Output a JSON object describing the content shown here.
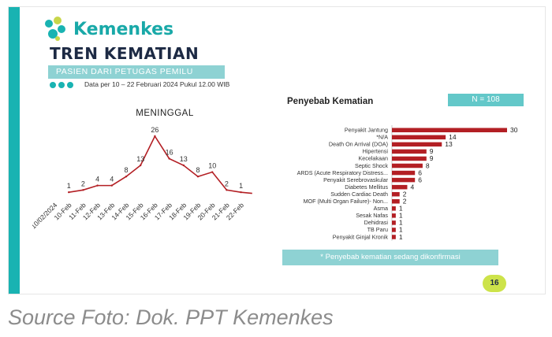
{
  "header": {
    "logo_text": "Kemenkes",
    "title": "TREN KEMATIAN",
    "subtitle": "PASIEN DARI PETUGAS PEMILU",
    "date_note": "Data per 10 – 22 Februari 2024 Pukul 12.00  WIB"
  },
  "colors": {
    "accent": "#19b3b2",
    "line": "#b31f24",
    "bar": "#b31f24",
    "badge": "#cde34a"
  },
  "chart_data": [
    {
      "type": "line",
      "title": "MENINGGAL",
      "categories": [
        "10/02/2024",
        "10-Feb",
        "11-Feb",
        "12-Feb",
        "13-Feb",
        "14-Feb",
        "15-Feb",
        "16-Feb",
        "17-Feb",
        "18-Feb",
        "19-Feb",
        "20-Feb",
        "21-Feb",
        "22-Feb"
      ],
      "values": [
        null,
        1,
        2,
        4,
        4,
        8,
        13,
        26,
        16,
        13,
        8,
        10,
        2,
        1
      ],
      "labels_shown": [
        false,
        true,
        true,
        true,
        true,
        true,
        true,
        true,
        true,
        true,
        true,
        true,
        true,
        true
      ],
      "trailing_point": 0.5,
      "ylim": [
        0,
        28
      ],
      "grid": false
    },
    {
      "type": "bar",
      "orientation": "horizontal",
      "title": "Penyebab Kematian",
      "n_label": "N = 108",
      "categories": [
        "Penyakit Jantung",
        "*N/A",
        "Death On Arrival (DOA)",
        "Hipertensi",
        "Kecelakaan",
        "Septic Shock",
        "ARDS (Acute Respiratory Distress...",
        "Penyakit Serebrovaskular",
        "Diabetes Mellitus",
        "Sudden Cardiac Death",
        "MOF (Multi Organ Failure)- Non...",
        "Asma",
        "Sesak Nafas",
        "Dehidrasi",
        "TB Paru",
        "Penyakit Ginjal Kronik"
      ],
      "values": [
        30,
        14,
        13,
        9,
        9,
        8,
        6,
        6,
        4,
        2,
        2,
        1,
        1,
        1,
        1,
        1
      ],
      "xlim": [
        0,
        30
      ],
      "grid": false
    }
  ],
  "footnote": "* Penyebab kematian sedang dikonfirmasi",
  "page_number": "16",
  "caption": "Source Foto: Dok. PPT Kemenkes"
}
